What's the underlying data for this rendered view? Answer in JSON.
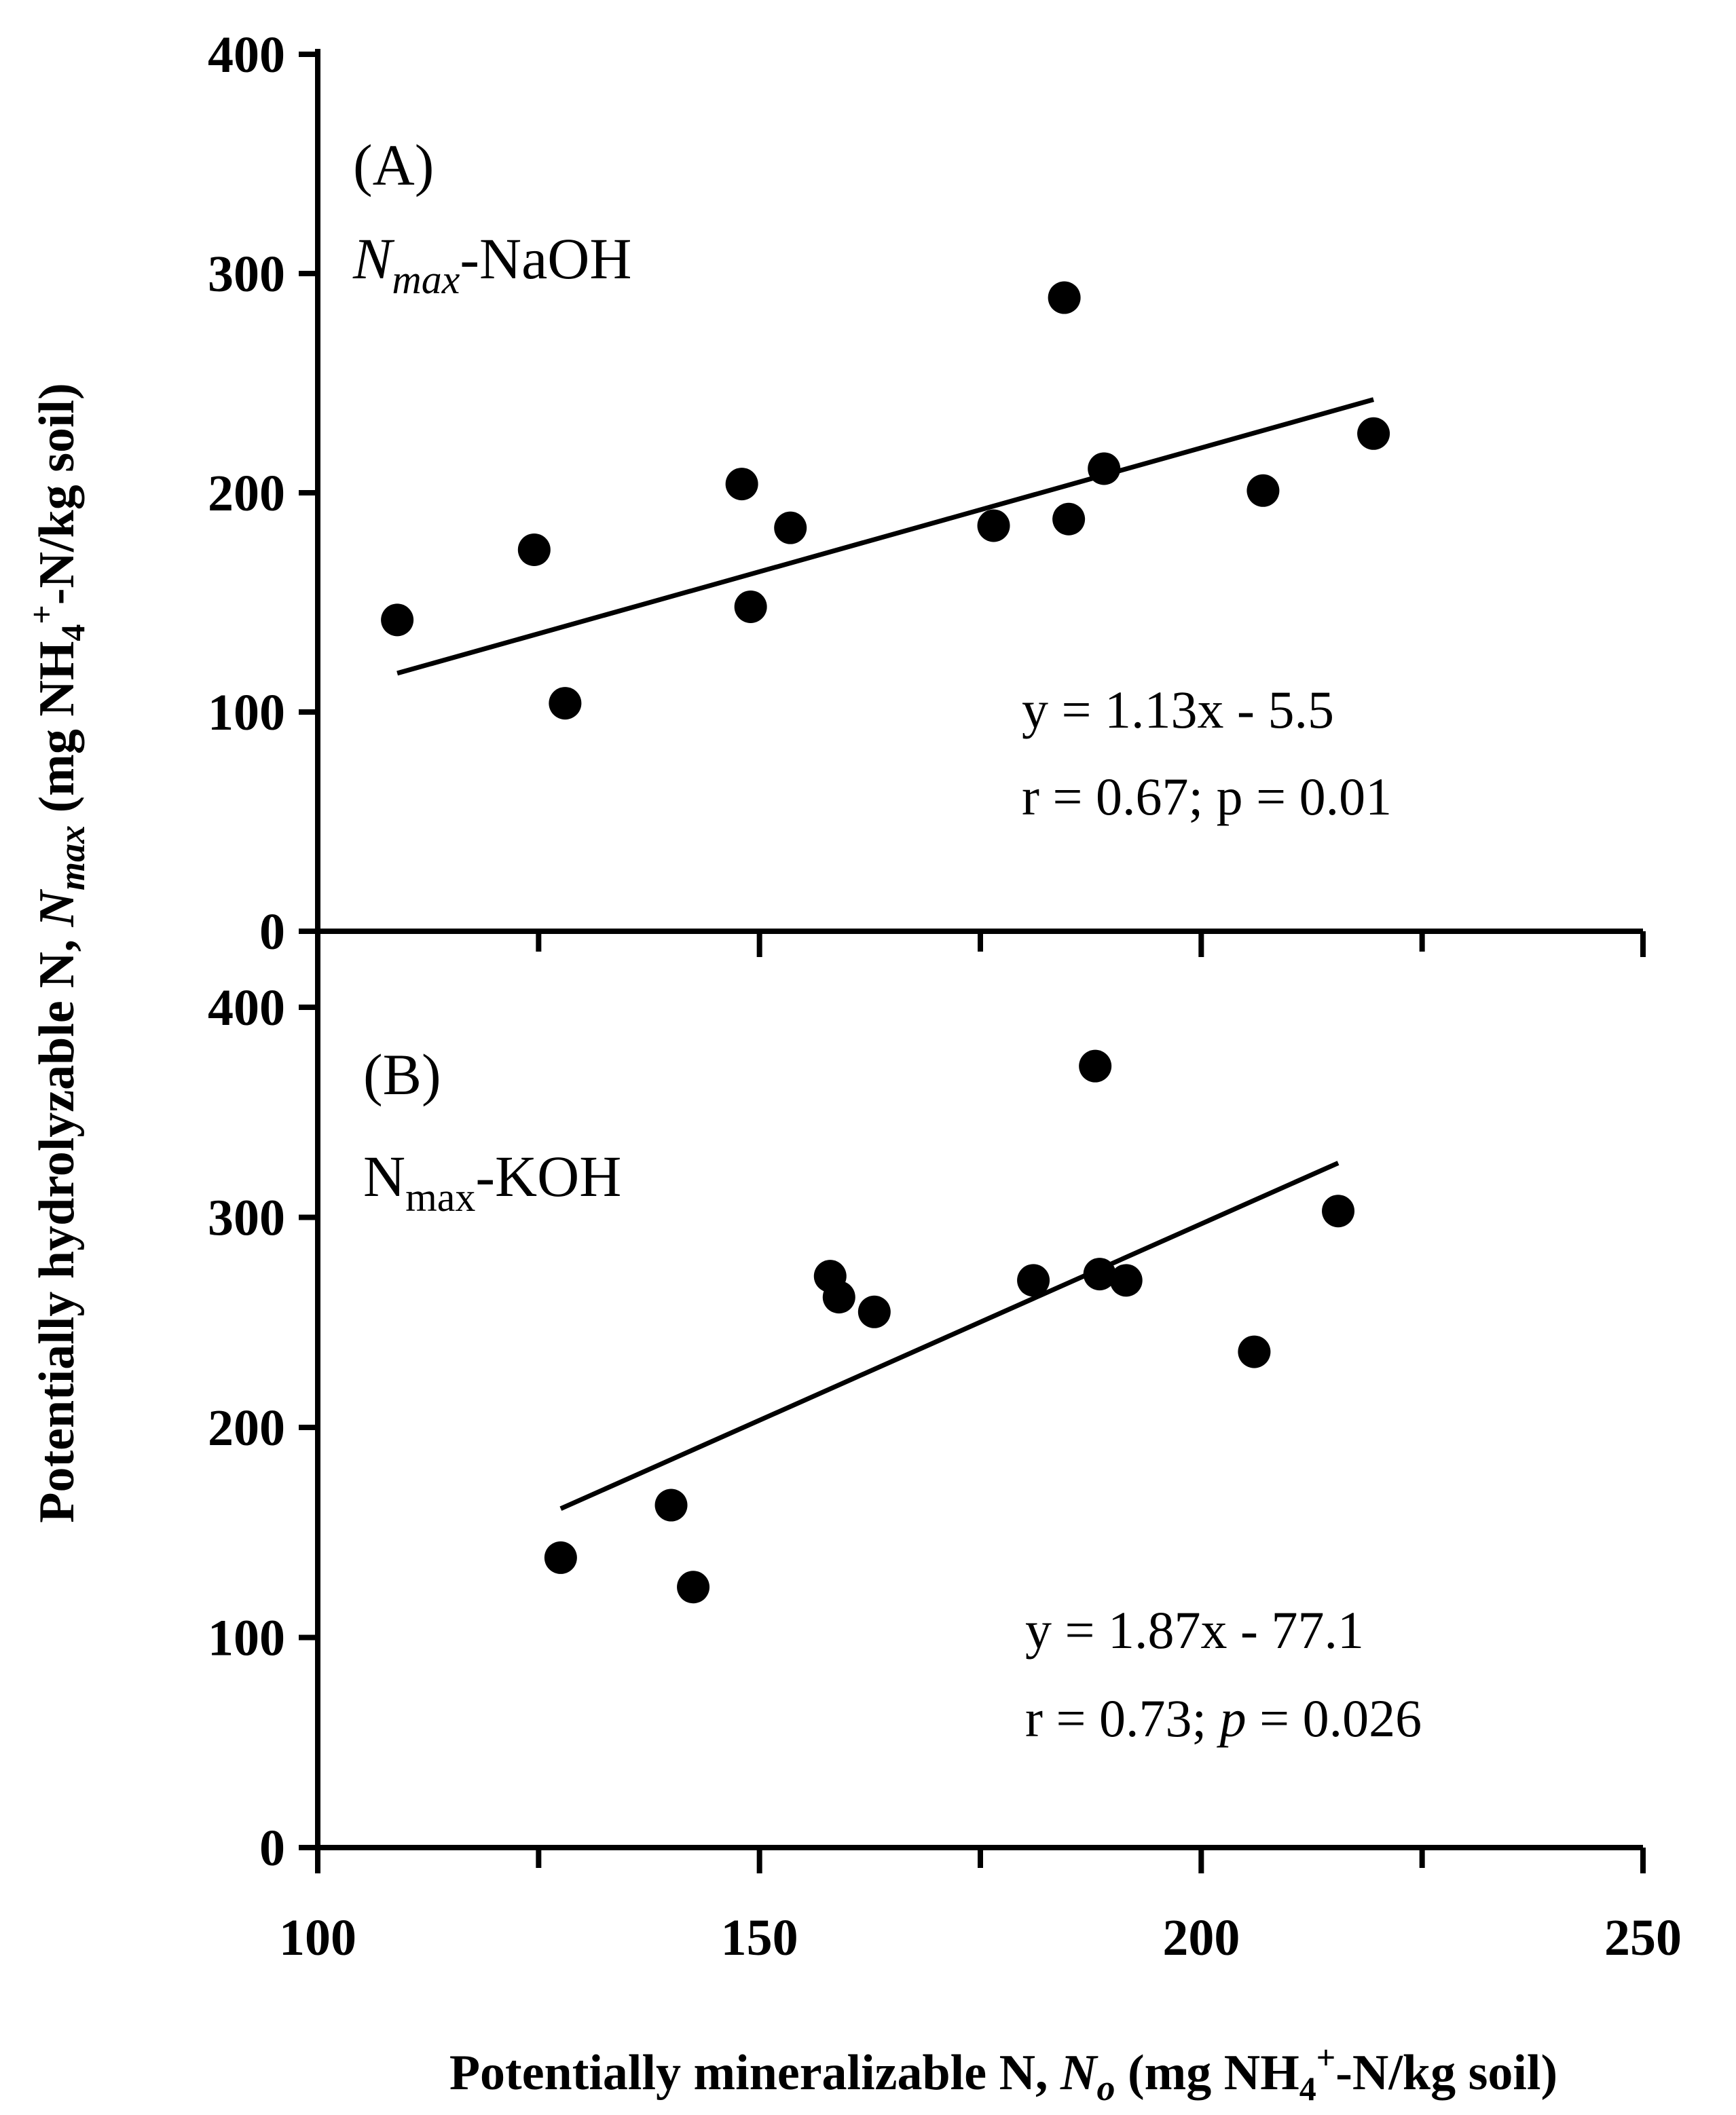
{
  "chart_data": [
    {
      "type": "scatter",
      "panel_label": "(A)",
      "series_label": {
        "main": "N",
        "sub": "max",
        "suffix": "-NaOH"
      },
      "equation": "y = 1.13x - 5.5",
      "stats": {
        "r_text": "r = 0.67; ",
        "p_symbol": "p",
        "p_text": " = 0.01"
      },
      "xlim": [
        100,
        250
      ],
      "ylim": [
        0,
        400
      ],
      "yticks": [
        "0",
        "100",
        "200",
        "300",
        "400"
      ],
      "points": [
        {
          "x": 109,
          "y": 142
        },
        {
          "x": 124.5,
          "y": 174
        },
        {
          "x": 128,
          "y": 104
        },
        {
          "x": 148,
          "y": 204
        },
        {
          "x": 149,
          "y": 148
        },
        {
          "x": 153.5,
          "y": 184
        },
        {
          "x": 176.5,
          "y": 185
        },
        {
          "x": 184.5,
          "y": 289
        },
        {
          "x": 185,
          "y": 188
        },
        {
          "x": 189,
          "y": 211
        },
        {
          "x": 207,
          "y": 201
        },
        {
          "x": 219.5,
          "y": 227
        }
      ],
      "fit": {
        "slope": 1.13,
        "intercept": -5.5,
        "x_range": [
          109,
          219.5
        ]
      }
    },
    {
      "type": "scatter",
      "panel_label": "(B)",
      "series_label": {
        "main": "N",
        "sub": "max",
        "suffix": "-KOH"
      },
      "equation": "y = 1.87x - 77.1",
      "stats": {
        "r_text": "r = 0.73; ",
        "p_symbol": "p",
        "p_text": " = 0.026"
      },
      "xlim": [
        100,
        250
      ],
      "ylim": [
        0,
        400
      ],
      "yticks": [
        "0",
        "100",
        "200",
        "300",
        "400"
      ],
      "points": [
        {
          "x": 127.5,
          "y": 138
        },
        {
          "x": 140,
          "y": 163
        },
        {
          "x": 142.5,
          "y": 124
        },
        {
          "x": 158,
          "y": 272
        },
        {
          "x": 159,
          "y": 262
        },
        {
          "x": 163,
          "y": 255
        },
        {
          "x": 181,
          "y": 270
        },
        {
          "x": 188,
          "y": 372
        },
        {
          "x": 188.5,
          "y": 273
        },
        {
          "x": 191.5,
          "y": 270
        },
        {
          "x": 206,
          "y": 236
        },
        {
          "x": 215.5,
          "y": 303
        }
      ],
      "fit": {
        "slope": 1.87,
        "intercept": -77.1,
        "x_range": [
          127.5,
          215.5
        ]
      }
    }
  ],
  "x_axis": {
    "ticks": [
      "100",
      "150",
      "200",
      "250"
    ],
    "title": {
      "t1": "Potentially mineralizable N,  ",
      "t2": "N",
      "t3": "o",
      "t4": " (mg NH",
      "t5": "4",
      "t6": "+",
      "t7": "-N/kg soil)"
    }
  },
  "y_axis": {
    "title": {
      "t1": "Potentially hydrolyzable N, ",
      "t2": "N",
      "t3": "max",
      "t4": "  (mg NH",
      "t5": "4",
      "t6": "+",
      "t7": "-N/kg soil)"
    }
  }
}
